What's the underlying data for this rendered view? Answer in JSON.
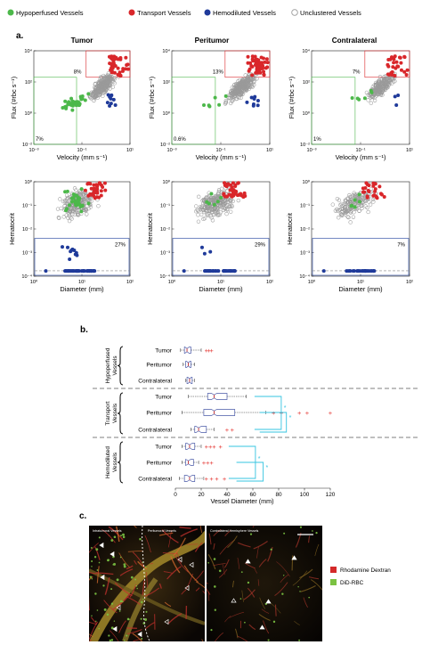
{
  "legend": {
    "items": [
      {
        "label": "Hypoperfused Vessels",
        "color": "#4cb84a",
        "filled": true
      },
      {
        "label": "Transport Vessels",
        "color": "#d9262a",
        "filled": true
      },
      {
        "label": "Hemodiluted Vessels",
        "color": "#1f3a9a",
        "filled": true
      },
      {
        "label": "Unclustered Vessels",
        "color": "#9a9a9a",
        "filled": false
      }
    ]
  },
  "panel_a": {
    "label": "a.",
    "columns": [
      "Tumor",
      "Peritumor",
      "Contralateral"
    ],
    "flux_row": {
      "ylabel": "Flux (#rbc s⁻¹)",
      "xlabel": "Velocity (mm s⁻¹)",
      "xticks": [
        "10⁻³",
        "10⁻¹",
        "10¹"
      ],
      "yticks": [
        "10⁴",
        "10²",
        "10⁰",
        "10⁻²"
      ],
      "top_pct": [
        "8%",
        "13%",
        "7%"
      ],
      "bottom_pct": [
        "7%",
        "0.6%",
        "1%"
      ]
    },
    "hct_row": {
      "ylabel": "Hematocrit",
      "xlabel": "Diameter (mm)",
      "xticks": [
        "10⁰",
        "10¹",
        "10²"
      ],
      "yticks": [
        "10⁰",
        "10⁻¹",
        "10⁻²",
        "10⁻³",
        "10⁻⁴"
      ],
      "pct": [
        "27%",
        "29%",
        "7%"
      ]
    }
  },
  "panel_b": {
    "label": "b.",
    "groups": [
      "Hypoperfused Vessels",
      "Transport Vessels",
      "Hemodiluted Vessels"
    ],
    "rows": [
      "Tumor",
      "Peritumor",
      "Contralateral"
    ],
    "xlabel": "Vessel Diameter (mm)",
    "xticks": [
      "0",
      "20",
      "40",
      "60",
      "80",
      "100",
      "120"
    ],
    "sig_marks": [
      "*",
      "*",
      "*",
      "*"
    ]
  },
  "panel_c": {
    "label": "c.",
    "left_title": "Intratumoral Vessels",
    "mid_title": "Peritumoral Vessels",
    "right_title": "Contralateral Hemisphere Vessels",
    "legend": [
      {
        "label": "Rhodamine Dextran",
        "color": "#d42a2a"
      },
      {
        "label": "DiD-RBC",
        "color": "#7bc242"
      }
    ]
  },
  "chart_data": [
    {
      "type": "scatter",
      "panel": "a-flux-tumor",
      "xlabel": "Velocity (mm s⁻¹)",
      "ylabel": "Flux (#rbc s⁻¹)",
      "log_x": true,
      "log_y": true,
      "xlim": [
        0.001,
        10
      ],
      "ylim": [
        0.01,
        10000
      ],
      "annotations": [
        "8%",
        "7%"
      ]
    },
    {
      "type": "scatter",
      "panel": "a-flux-peritumor",
      "xlabel": "Velocity (mm s⁻¹)",
      "ylabel": "Flux (#rbc s⁻¹)",
      "log_x": true,
      "log_y": true,
      "xlim": [
        0.001,
        10
      ],
      "ylim": [
        0.01,
        10000
      ],
      "annotations": [
        "13%",
        "0.6%"
      ]
    },
    {
      "type": "scatter",
      "panel": "a-flux-contralateral",
      "xlabel": "Velocity (mm s⁻¹)",
      "ylabel": "Flux (#rbc s⁻¹)",
      "log_x": true,
      "log_y": true,
      "xlim": [
        0.001,
        10
      ],
      "ylim": [
        0.01,
        10000
      ],
      "annotations": [
        "7%",
        "1%"
      ]
    },
    {
      "type": "scatter",
      "panel": "a-hct-tumor",
      "xlabel": "Diameter (mm)",
      "ylabel": "Hematocrit",
      "log_x": true,
      "log_y": true,
      "xlim": [
        1,
        100
      ],
      "ylim": [
        0.0001,
        1
      ],
      "annotations": [
        "27%"
      ]
    },
    {
      "type": "scatter",
      "panel": "a-hct-peritumor",
      "xlabel": "Diameter (mm)",
      "ylabel": "Hematocrit",
      "log_x": true,
      "log_y": true,
      "xlim": [
        1,
        100
      ],
      "ylim": [
        0.0001,
        1
      ],
      "annotations": [
        "29%"
      ]
    },
    {
      "type": "scatter",
      "panel": "a-hct-contralateral",
      "xlabel": "Diameter (mm)",
      "ylabel": "Hematocrit",
      "log_x": true,
      "log_y": true,
      "xlim": [
        1,
        100
      ],
      "ylim": [
        0.0001,
        1
      ],
      "annotations": [
        "7%"
      ]
    },
    {
      "type": "box",
      "panel": "b",
      "xlabel": "Vessel Diameter (mm)",
      "xlim": [
        0,
        120
      ],
      "boxes": [
        {
          "group": "Hypoperfused Vessels",
          "row": "Tumor",
          "whisker_low": 4,
          "q1": 7,
          "median": 9,
          "q3": 12,
          "whisker_high": 20,
          "outliers": [
            24,
            26,
            28
          ]
        },
        {
          "group": "Hypoperfused Vessels",
          "row": "Peritumor",
          "whisker_low": 6,
          "q1": 8,
          "median": 10,
          "q3": 12,
          "whisker_high": 15,
          "outliers": []
        },
        {
          "group": "Hypoperfused Vessels",
          "row": "Contralateral",
          "whisker_low": 8,
          "q1": 9,
          "median": 11,
          "q3": 13,
          "whisker_high": 15,
          "outliers": []
        },
        {
          "group": "Transport Vessels",
          "row": "Tumor",
          "whisker_low": 10,
          "q1": 25,
          "median": 30,
          "q3": 40,
          "whisker_high": 55,
          "outliers": []
        },
        {
          "group": "Transport Vessels",
          "row": "Peritumor",
          "whisker_low": 5,
          "q1": 22,
          "median": 30,
          "q3": 46,
          "whisker_high": 70,
          "outliers": [
            76,
            82,
            96,
            102,
            120
          ]
        },
        {
          "group": "Transport Vessels",
          "row": "Contralateral",
          "whisker_low": 12,
          "q1": 15,
          "median": 18,
          "q3": 24,
          "whisker_high": 30,
          "outliers": [
            40,
            44
          ]
        },
        {
          "group": "Hemodiluted Vessels",
          "row": "Tumor",
          "whisker_low": 5,
          "q1": 8,
          "median": 11,
          "q3": 15,
          "whisker_high": 20,
          "outliers": [
            24,
            27,
            30,
            35
          ]
        },
        {
          "group": "Hemodiluted Vessels",
          "row": "Peritumor",
          "whisker_low": 5,
          "q1": 8,
          "median": 10,
          "q3": 14,
          "whisker_high": 18,
          "outliers": [
            22,
            25,
            28
          ]
        },
        {
          "group": "Hemodiluted Vessels",
          "row": "Contralateral",
          "whisker_low": 3,
          "q1": 7,
          "median": 11,
          "q3": 15,
          "whisker_high": 22,
          "outliers": [
            24,
            28,
            32,
            38
          ]
        }
      ]
    }
  ]
}
